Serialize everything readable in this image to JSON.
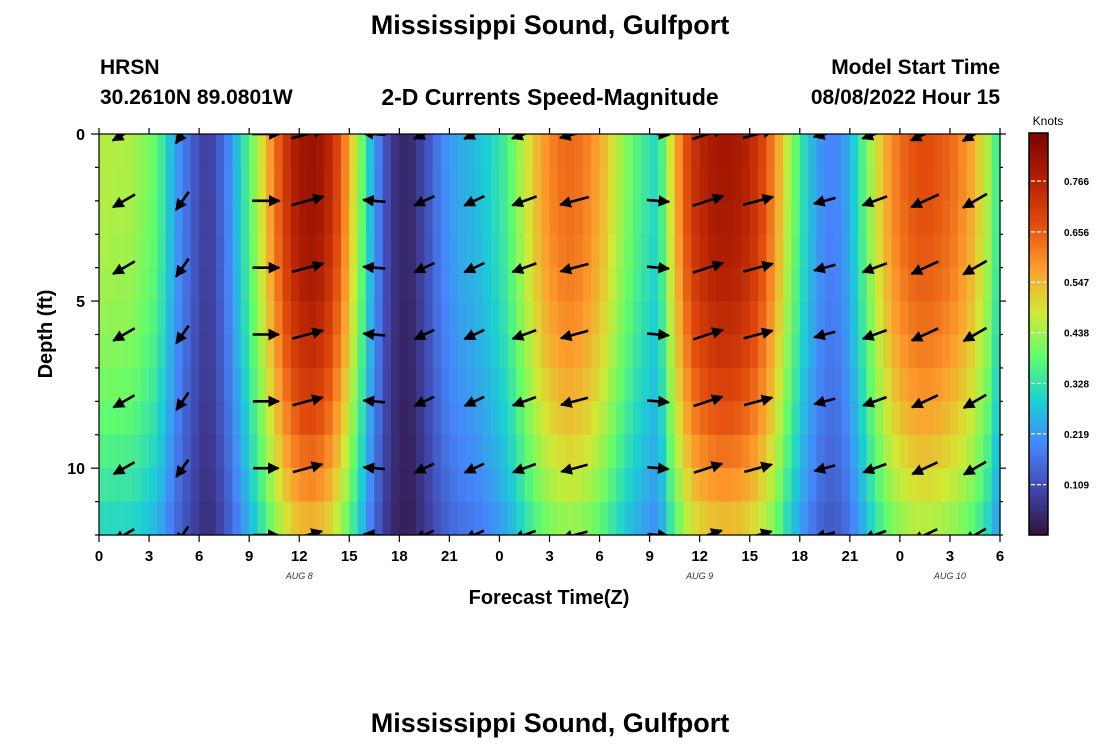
{
  "header": {
    "title": "Mississippi Sound, Gulfport",
    "station": "HRSN",
    "coords": "30.2610N  89.0801W",
    "plot_title": "2-D Currents Speed-Magnitude",
    "model_label": "Model Start Time",
    "model_time": "08/08/2022 Hour 15"
  },
  "footer": {
    "title": "Mississippi Sound, Gulfport"
  },
  "colors": {
    "palette": [
      "#30123b",
      "#4146ac",
      "#4686fb",
      "#1bcfd4",
      "#62fc6b",
      "#d2e935",
      "#fe9b2d",
      "#e14a0c",
      "#b01e03",
      "#7a0403"
    ]
  },
  "chart_data": {
    "type": "heatmap",
    "xlabel": "Forecast Time(Z)",
    "ylabel": "Depth (ft)",
    "colorbar_label": "Knots",
    "colorbar_ticks": [
      0.109,
      0.219,
      0.328,
      0.438,
      0.547,
      0.656,
      0.766
    ],
    "colorbar_range": [
      0.0,
      0.87
    ],
    "xlim": [
      0,
      54
    ],
    "ylim": [
      12,
      0
    ],
    "x_ticks": [
      {
        "h": 0,
        "label": "0"
      },
      {
        "h": 3,
        "label": "3"
      },
      {
        "h": 6,
        "label": "6"
      },
      {
        "h": 9,
        "label": "9"
      },
      {
        "h": 12,
        "label": "12"
      },
      {
        "h": 15,
        "label": "15"
      },
      {
        "h": 18,
        "label": "18"
      },
      {
        "h": 21,
        "label": "21"
      },
      {
        "h": 24,
        "label": "0"
      },
      {
        "h": 27,
        "label": "3"
      },
      {
        "h": 30,
        "label": "6"
      },
      {
        "h": 33,
        "label": "9"
      },
      {
        "h": 36,
        "label": "12"
      },
      {
        "h": 39,
        "label": "15"
      },
      {
        "h": 42,
        "label": "18"
      },
      {
        "h": 45,
        "label": "21"
      },
      {
        "h": 48,
        "label": "0"
      },
      {
        "h": 51,
        "label": "3"
      },
      {
        "h": 54,
        "label": "6"
      }
    ],
    "date_labels": [
      {
        "h": 12,
        "label": "AUG 8"
      },
      {
        "h": 36,
        "label": "AUG 9"
      },
      {
        "h": 51,
        "label": "AUG 10"
      }
    ],
    "y_ticks": [
      0,
      5,
      10
    ],
    "speed_profile": {
      "hours": [
        0,
        2,
        3.5,
        4.5,
        5.5,
        6.5,
        7.5,
        8.5,
        9.5,
        10.5,
        11.5,
        12.5,
        13.5,
        14.5,
        15.5,
        16.5,
        17.5,
        18.5,
        19.5,
        20.5,
        21.5,
        22.5,
        23.5,
        24.5,
        25.5,
        26.5,
        27.5,
        28.5,
        29.5,
        30.5,
        31.5,
        32.5,
        33.5,
        34.5,
        35.5,
        36.5,
        37.5,
        38.5,
        39.5,
        40.5,
        41.5,
        42.5,
        43.5,
        44.5,
        45.5,
        46.5,
        47.5,
        48.5,
        49.5,
        50.5,
        51.5,
        52.5,
        53.5,
        54
      ],
      "speeds": [
        0.46,
        0.45,
        0.38,
        0.24,
        0.14,
        0.07,
        0.16,
        0.3,
        0.45,
        0.62,
        0.76,
        0.82,
        0.79,
        0.66,
        0.45,
        0.22,
        0.07,
        0.03,
        0.1,
        0.19,
        0.24,
        0.26,
        0.3,
        0.36,
        0.47,
        0.57,
        0.63,
        0.64,
        0.6,
        0.52,
        0.42,
        0.35,
        0.3,
        0.55,
        0.72,
        0.78,
        0.8,
        0.78,
        0.72,
        0.6,
        0.42,
        0.28,
        0.19,
        0.2,
        0.32,
        0.48,
        0.6,
        0.66,
        0.68,
        0.66,
        0.62,
        0.55,
        0.42,
        0.3
      ]
    },
    "vectors": {
      "hours": [
        1.5,
        5,
        10,
        12.5,
        16.5,
        19.5,
        22.5,
        25.5,
        28.5,
        33.5,
        36.5,
        39.5,
        43.5,
        46.5,
        49.5,
        52.5
      ],
      "depths": [
        0,
        2,
        4,
        6,
        8,
        10,
        12
      ],
      "directions_deg": [
        210,
        235,
        0,
        15,
        175,
        205,
        205,
        200,
        195,
        355,
        18,
        15,
        195,
        200,
        205,
        210
      ]
    }
  }
}
